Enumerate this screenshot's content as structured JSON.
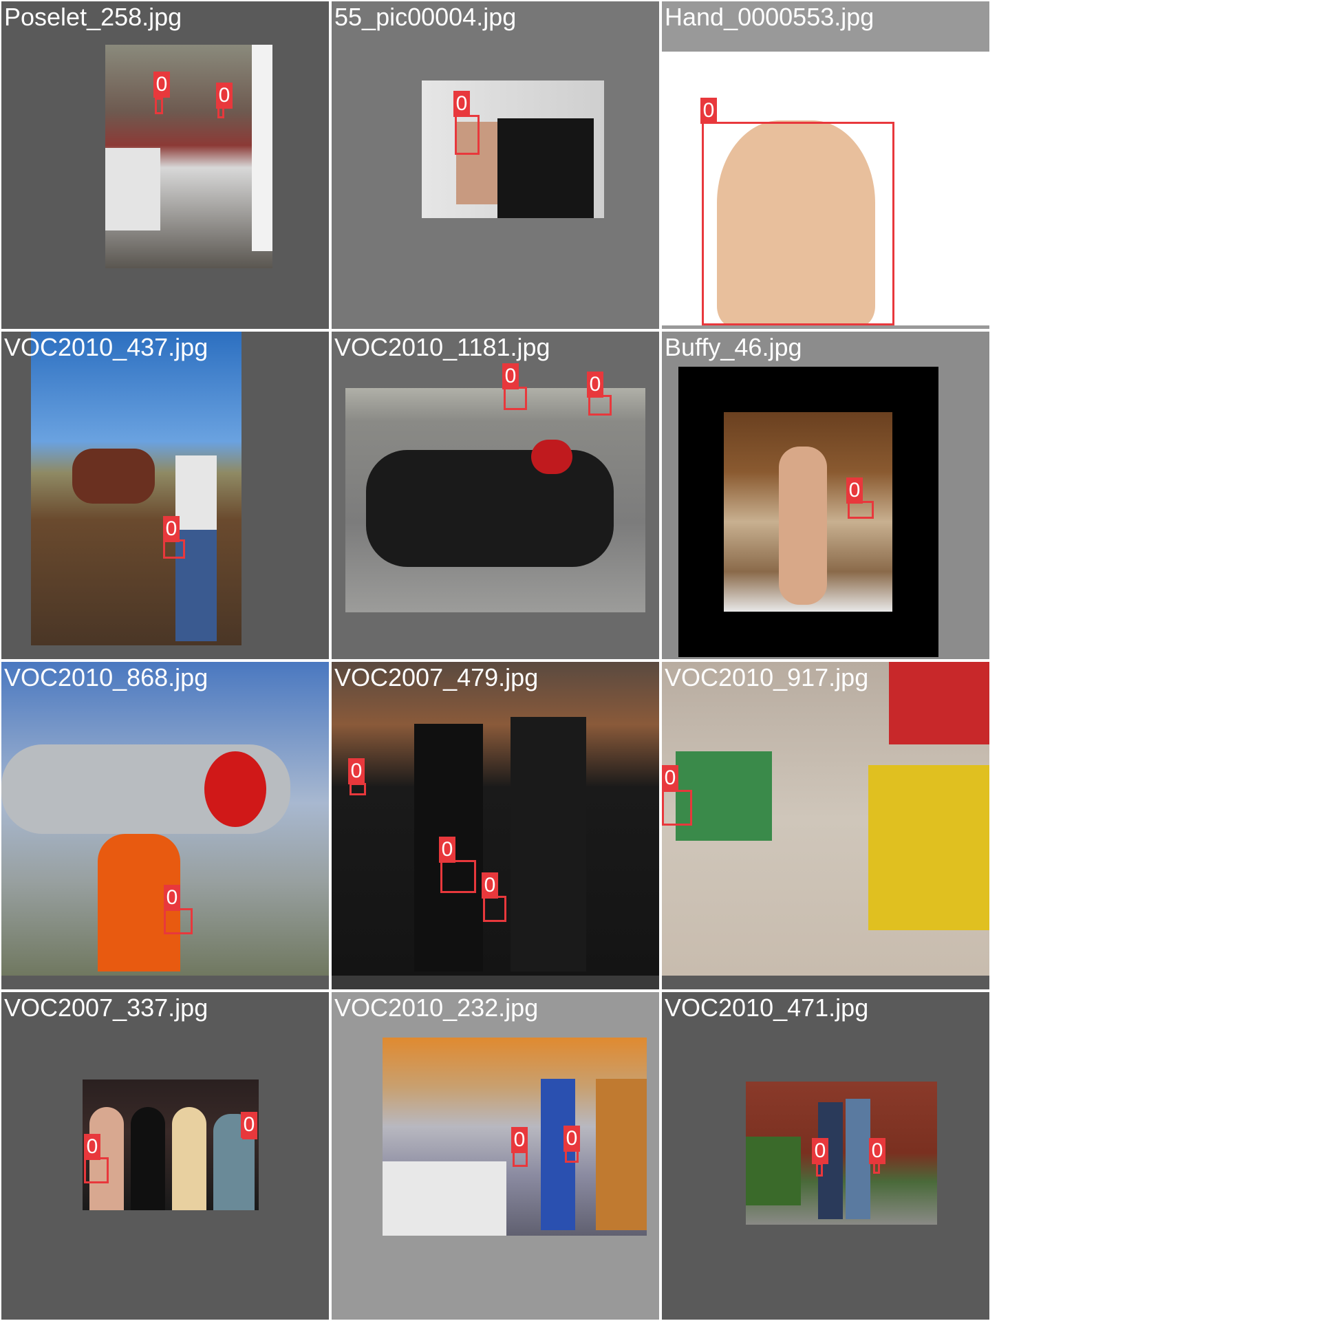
{
  "tiles": [
    {
      "filename": "Poselet_258.jpg",
      "label": "0",
      "label_2": "0"
    },
    {
      "filename": "55_pic00004.jpg",
      "label": "0"
    },
    {
      "filename": "Hand_0000553.jpg",
      "label": "0"
    },
    {
      "filename": "VOC2010_437.jpg",
      "label": "0"
    },
    {
      "filename": "VOC2010_1181.jpg",
      "label": "0",
      "label_2": "0"
    },
    {
      "filename": "Buffy_46.jpg",
      "label": "0"
    },
    {
      "filename": "VOC2010_868.jpg",
      "label": "0"
    },
    {
      "filename": "VOC2007_479.jpg",
      "label": "0",
      "label_2": "0",
      "label_3": "0"
    },
    {
      "filename": "VOC2010_917.jpg",
      "label": "0"
    },
    {
      "filename": "VOC2007_337.jpg",
      "label": "0",
      "label_2": "0"
    },
    {
      "filename": "VOC2010_232.jpg",
      "label": "0",
      "label_2": "0"
    },
    {
      "filename": "VOC2010_471.jpg",
      "label": "0",
      "label_2": "0"
    }
  ],
  "colors": {
    "box": "#e8383c",
    "bg_dark": "#5a5a5a",
    "bg_mid": "#777777",
    "bg_light": "#999999"
  }
}
